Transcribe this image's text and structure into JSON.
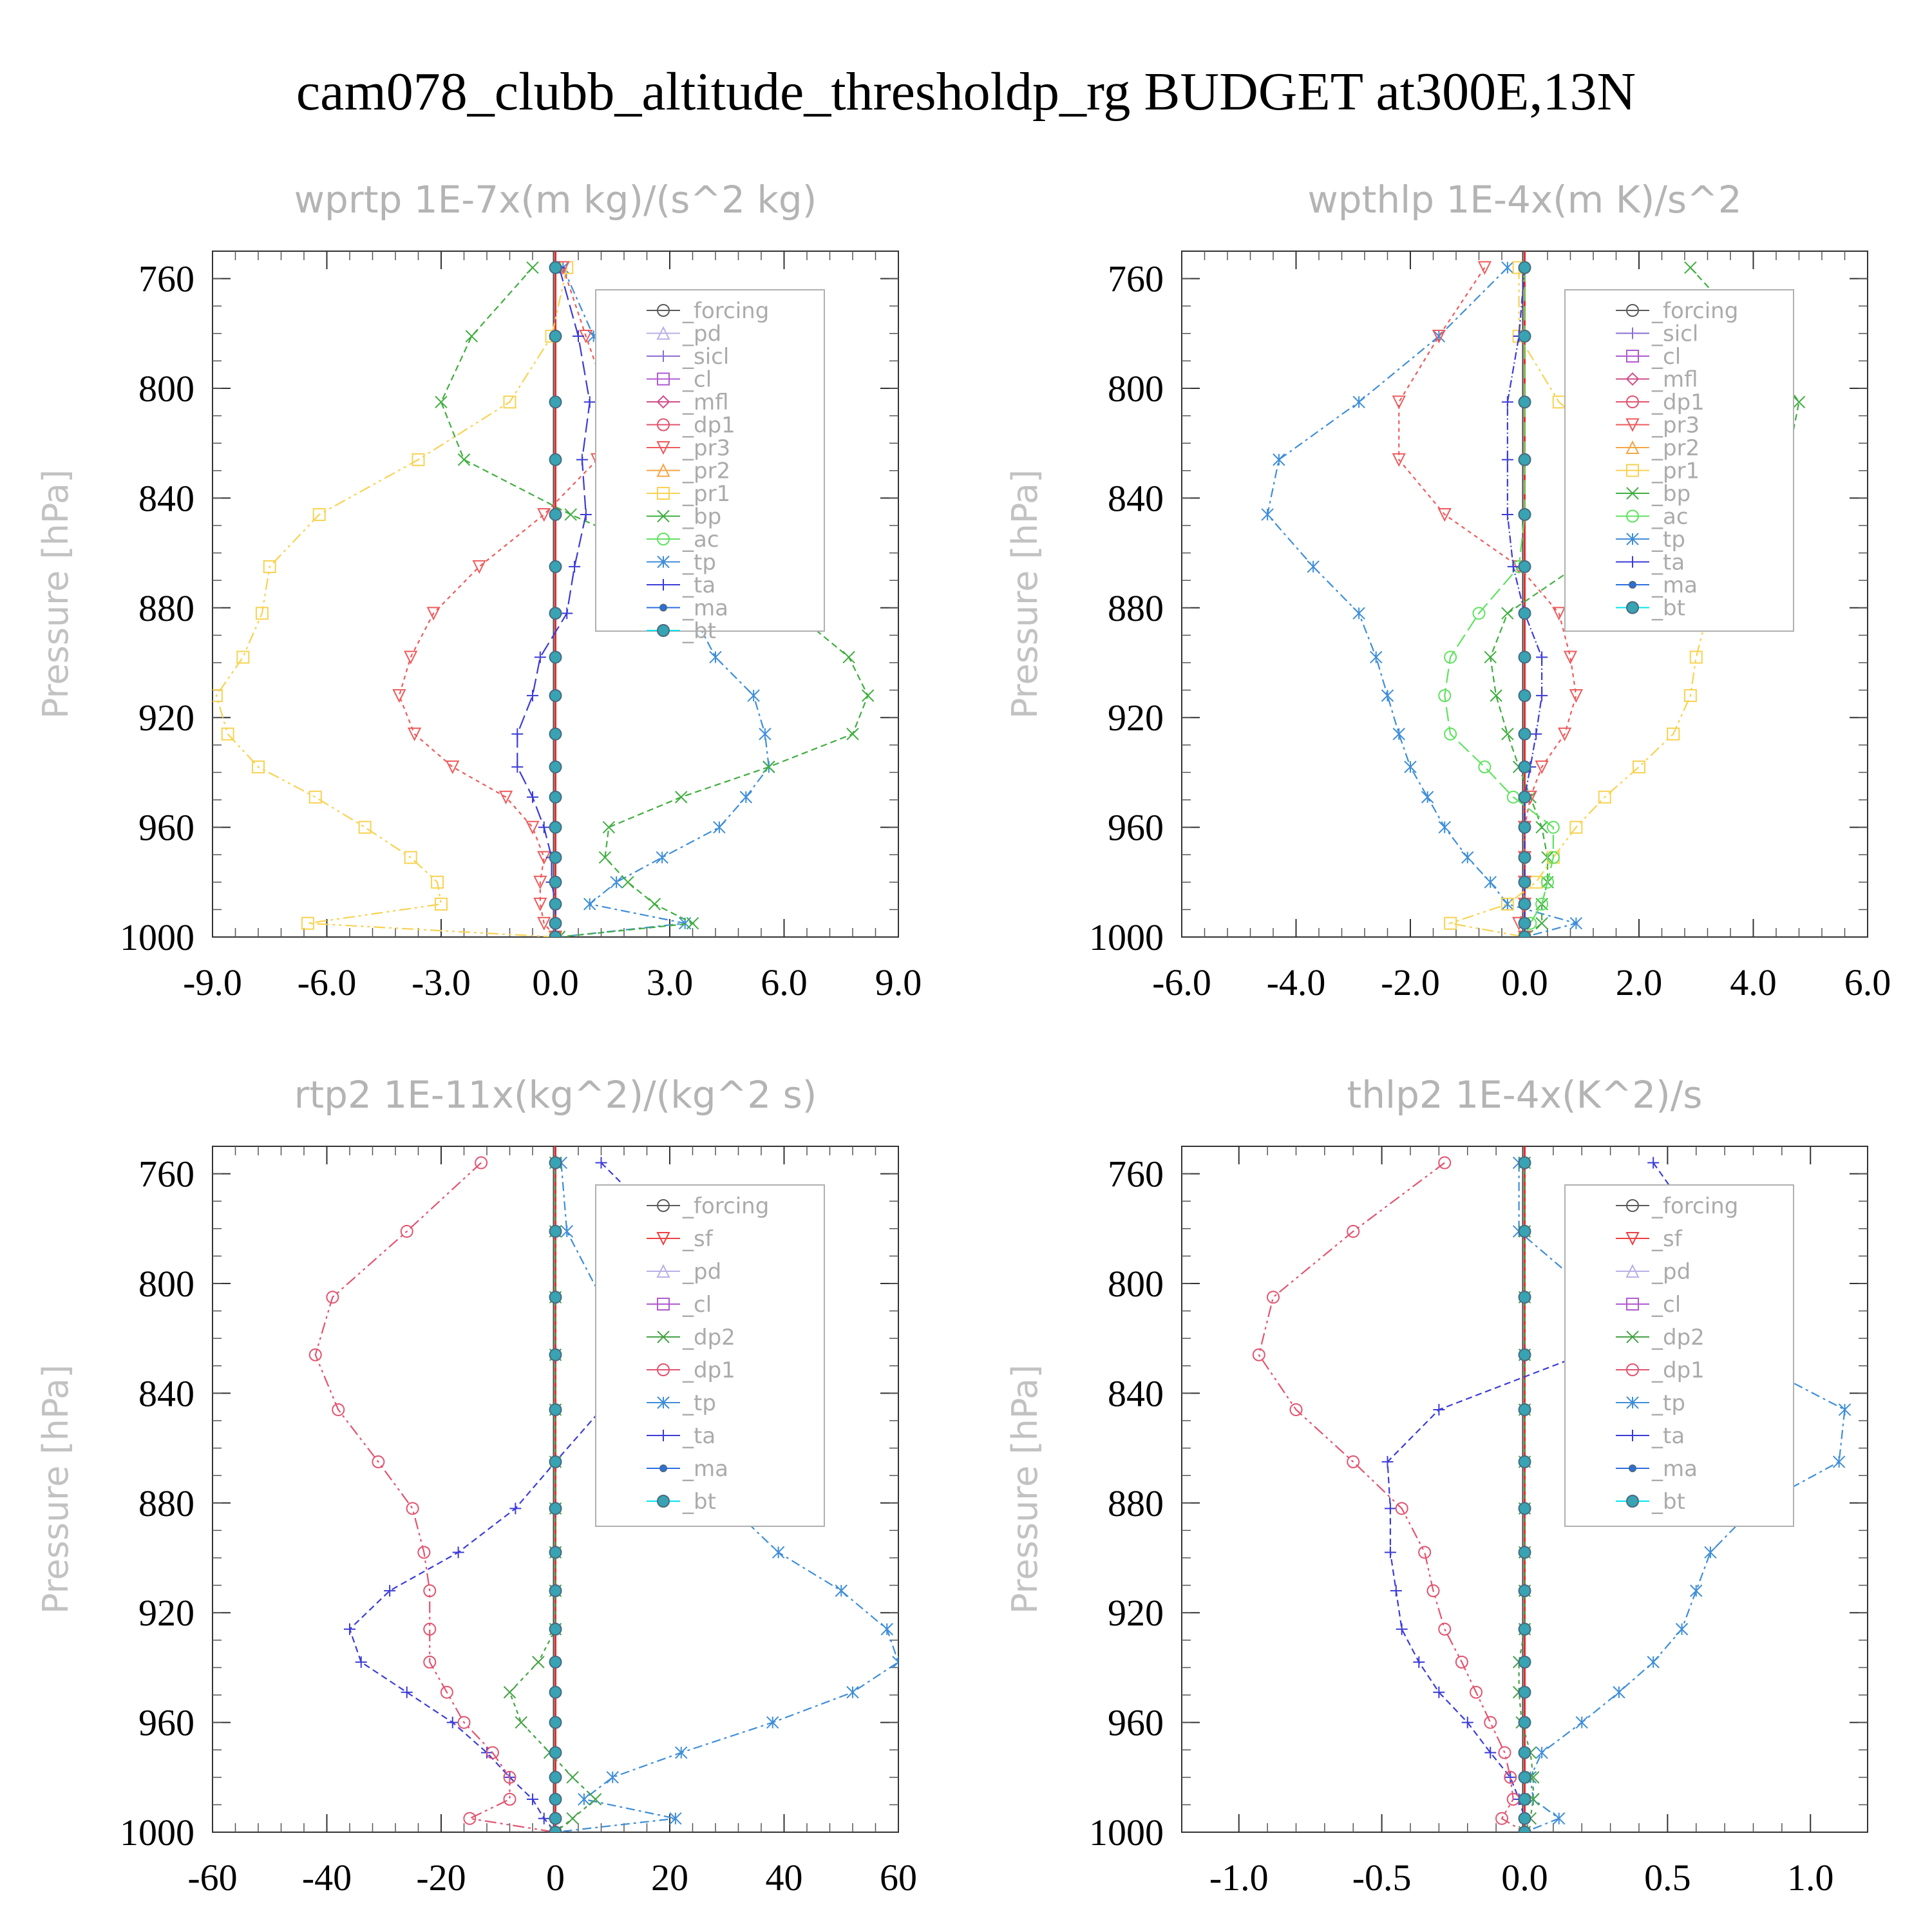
{
  "title": "cam078_clubb_altitude_thresholdp_rg  BUDGET at300E,13N",
  "colors": {
    "_forcing": "#5a5a5a",
    "_pd": "#b9b0e6",
    "_sicl": "#8a6fd0",
    "_cl": "#b05ad0",
    "_mfl": "#d04d8a",
    "_dp1": "#e2536f",
    "_pr3": "#ee5a5a",
    "_pr2": "#f4a545",
    "_pr1": "#f8d250",
    "_bp": "#3fae3f",
    "_ac": "#5fe25f",
    "_tp": "#3e8ed8",
    "_ta": "#3b3bd8",
    "_ma": "#2a6ee0",
    "_bt": "#00e5ee",
    "_sf": "#ee4040",
    "_dp2": "#46a246"
  },
  "chart_data": [
    {
      "type": "line",
      "title": "wprtp  1E-7x(m kg)/(s^2 kg)",
      "ylabel": "Pressure [hPa]",
      "xlim": [
        -9,
        9
      ],
      "ylim": [
        1000,
        750
      ],
      "xticks": [
        "-9.0",
        "-6.0",
        "-3.0",
        "0.0",
        "3.0",
        "6.0",
        "9.0"
      ],
      "yticks": [
        "760",
        "800",
        "840",
        "880",
        "920",
        "960",
        "1000"
      ],
      "y": [
        756,
        781,
        805,
        826,
        846,
        865,
        882,
        898,
        912,
        926,
        938,
        949,
        960,
        971,
        980,
        988,
        995,
        1000
      ],
      "legend": [
        "_forcing",
        "_pd",
        "_sicl",
        "_cl",
        "_mfl",
        "_dp1",
        "_pr3",
        "_pr2",
        "_pr1",
        "_bp",
        "_ac",
        "_tp",
        "_ta",
        "_ma",
        "_bt"
      ],
      "series": [
        {
          "name": "_tp",
          "values": [
            0.2,
            1.0,
            2.3,
            3.6,
            5.2,
            4.4,
            3.6,
            4.2,
            5.2,
            5.5,
            5.6,
            5.0,
            4.3,
            2.8,
            1.6,
            0.9,
            3.4,
            0.1
          ]
        },
        {
          "name": "_bp",
          "values": [
            -0.6,
            -2.2,
            -3.0,
            -2.4,
            0.4,
            3.5,
            6.3,
            7.7,
            8.2,
            7.8,
            5.6,
            3.3,
            1.4,
            1.3,
            1.9,
            2.6,
            3.6,
            0.1
          ]
        },
        {
          "name": "_pr1",
          "values": [
            0.3,
            -0.1,
            -1.2,
            -3.6,
            -6.2,
            -7.5,
            -7.7,
            -8.2,
            -8.9,
            -8.6,
            -7.8,
            -6.3,
            -5.0,
            -3.8,
            -3.1,
            -3.0,
            -6.5,
            0.0
          ]
        },
        {
          "name": "_pr3",
          "values": [
            0.2,
            0.8,
            1.4,
            1.1,
            -0.3,
            -2.0,
            -3.2,
            -3.8,
            -4.1,
            -3.7,
            -2.7,
            -1.3,
            -0.6,
            -0.3,
            -0.4,
            -0.4,
            -0.3,
            0.0
          ]
        },
        {
          "name": "_ta",
          "values": [
            0.1,
            0.6,
            0.9,
            0.7,
            0.8,
            0.5,
            0.3,
            -0.4,
            -0.6,
            -1.0,
            -1.0,
            -0.6,
            -0.3,
            -0.1,
            -0.1,
            0.0,
            0.0,
            0.0
          ]
        },
        {
          "name": "_bt",
          "values": [
            0,
            0,
            0,
            0,
            0,
            0,
            0,
            0,
            0,
            0,
            0,
            0,
            0,
            0,
            0,
            0,
            0,
            0
          ]
        }
      ]
    },
    {
      "type": "line",
      "title": "wpthlp  1E-4x(m K)/s^2",
      "ylabel": "Pressure [hPa]",
      "xlim": [
        -6,
        6
      ],
      "ylim": [
        1000,
        750
      ],
      "xticks": [
        "-6.0",
        "-4.0",
        "-2.0",
        "0.0",
        "2.0",
        "4.0",
        "6.0"
      ],
      "yticks": [
        "760",
        "800",
        "840",
        "880",
        "920",
        "960",
        "1000"
      ],
      "y": [
        756,
        781,
        805,
        826,
        846,
        865,
        882,
        898,
        912,
        926,
        938,
        949,
        960,
        971,
        980,
        988,
        995,
        1000
      ],
      "legend": [
        "_forcing",
        "_sicl",
        "_cl",
        "_mfl",
        "_dp1",
        "_pr3",
        "_pr2",
        "_pr1",
        "_bp",
        "_ac",
        "_tp",
        "_ta",
        "_ma",
        "_bt"
      ],
      "series": [
        {
          "name": "_tp",
          "values": [
            -0.3,
            -1.5,
            -2.9,
            -4.3,
            -4.5,
            -3.7,
            -2.9,
            -2.6,
            -2.4,
            -2.2,
            -2.0,
            -1.7,
            -1.4,
            -1.0,
            -0.6,
            -0.3,
            0.9,
            0.0
          ]
        },
        {
          "name": "_bp",
          "values": [
            2.9,
            4.0,
            4.8,
            4.6,
            2.9,
            0.9,
            -0.3,
            -0.6,
            -0.5,
            -0.3,
            -0.1,
            0.1,
            0.3,
            0.4,
            0.4,
            0.3,
            0.3,
            0.0
          ]
        },
        {
          "name": "_pr1",
          "values": [
            -0.1,
            -0.1,
            0.6,
            1.8,
            2.8,
            3.3,
            3.2,
            3.0,
            2.9,
            2.6,
            2.0,
            1.4,
            0.9,
            0.5,
            0.2,
            -0.3,
            -1.3,
            0.0
          ]
        },
        {
          "name": "_pr3",
          "values": [
            -0.7,
            -1.5,
            -2.2,
            -2.2,
            -1.4,
            -0.1,
            0.6,
            0.8,
            0.9,
            0.7,
            0.3,
            0.1,
            0.0,
            0.0,
            0.0,
            0.0,
            -0.1,
            0.0
          ]
        },
        {
          "name": "_ac",
          "values": [
            0,
            0,
            0,
            0,
            0,
            -0.1,
            -0.8,
            -1.3,
            -1.4,
            -1.3,
            -0.7,
            -0.2,
            0.5,
            0.5,
            0.4,
            0.3,
            0.1,
            0.0
          ]
        },
        {
          "name": "_ta",
          "values": [
            0,
            -0.1,
            -0.3,
            -0.3,
            -0.3,
            -0.2,
            0.0,
            0.3,
            0.3,
            0.2,
            0.1,
            0.0,
            0.0,
            0.0,
            0.0,
            0.0,
            0.0,
            0.0
          ]
        },
        {
          "name": "_bt",
          "values": [
            0,
            0,
            0,
            0,
            0,
            0,
            0,
            0,
            0,
            0,
            0,
            0,
            0,
            0,
            0,
            0,
            0,
            0
          ]
        }
      ]
    },
    {
      "type": "line",
      "title": "rtp2  1E-11x(kg^2)/(kg^2 s)",
      "ylabel": "Pressure [hPa]",
      "xlim": [
        -60,
        60
      ],
      "ylim": [
        1000,
        750
      ],
      "xticks": [
        "-60",
        "-40",
        "-20",
        "0",
        "20",
        "40",
        "60"
      ],
      "yticks": [
        "760",
        "800",
        "840",
        "880",
        "920",
        "960",
        "1000"
      ],
      "y": [
        756,
        781,
        805,
        826,
        846,
        865,
        882,
        898,
        912,
        926,
        938,
        949,
        960,
        971,
        980,
        988,
        995,
        1000
      ],
      "legend": [
        "_forcing",
        "_sf",
        "_pd",
        "_cl",
        "_dp2",
        "_dp1",
        "_tp",
        "_ta",
        "_ma",
        "_bt"
      ],
      "series": [
        {
          "name": "_tp",
          "values": [
            1.0,
            2.0,
            8.0,
            19.0,
            28.0,
            30.0,
            31.0,
            39.0,
            50.0,
            58.0,
            60.0,
            52.0,
            38.0,
            22.0,
            10.0,
            5.0,
            21.0,
            0.0
          ]
        },
        {
          "name": "_ta",
          "values": [
            8.0,
            20.0,
            30.0,
            23.0,
            8.0,
            0.0,
            -7.0,
            -17.0,
            -29.0,
            -36.0,
            -34.0,
            -26.0,
            -18.0,
            -12.0,
            -8.0,
            -4.0,
            -2.0,
            0.0
          ]
        },
        {
          "name": "_dp1",
          "values": [
            -13.0,
            -26.0,
            -39.0,
            -42.0,
            -38.0,
            -31.0,
            -25.0,
            -23.0,
            -22.0,
            -22.0,
            -22.0,
            -19.0,
            -16.0,
            -11.0,
            -8.0,
            -8.0,
            -15.0,
            0.0
          ]
        },
        {
          "name": "_dp2",
          "values": [
            0,
            0,
            0,
            0,
            0,
            0,
            0,
            0,
            0,
            0,
            -3.0,
            -8.0,
            -6.0,
            -1.0,
            3.0,
            7.0,
            3.0,
            0.0
          ]
        },
        {
          "name": "_bt",
          "values": [
            0,
            0,
            0,
            0,
            0,
            0,
            0,
            0,
            0,
            0,
            0,
            0,
            0,
            0,
            0,
            0,
            0,
            0
          ]
        }
      ]
    },
    {
      "type": "line",
      "title": "thlp2  1E-4x(K^2)/s",
      "ylabel": "Pressure [hPa]",
      "xlim": [
        -1.2,
        1.2
      ],
      "ylim": [
        1000,
        750
      ],
      "xticks": [
        "-1.0",
        "-0.5",
        "0.0",
        "0.5",
        "1.0"
      ],
      "xtick_values": [
        -1.0,
        -0.5,
        0.0,
        0.5,
        1.0
      ],
      "yticks": [
        "760",
        "800",
        "840",
        "880",
        "920",
        "960",
        "1000"
      ],
      "y": [
        756,
        781,
        805,
        826,
        846,
        865,
        882,
        898,
        912,
        926,
        938,
        949,
        960,
        971,
        980,
        988,
        995,
        1000
      ],
      "legend": [
        "_forcing",
        "_sf",
        "_pd",
        "_cl",
        "_dp2",
        "_dp1",
        "_tp",
        "_ta",
        "_ma",
        "_bt"
      ],
      "series": [
        {
          "name": "_tp",
          "values": [
            -0.02,
            -0.02,
            0.25,
            0.75,
            1.12,
            1.1,
            0.8,
            0.65,
            0.6,
            0.55,
            0.45,
            0.33,
            0.2,
            0.06,
            0.02,
            0.03,
            0.12,
            0.0
          ]
        },
        {
          "name": "_ta",
          "values": [
            0.45,
            0.62,
            0.66,
            0.2,
            -0.3,
            -0.48,
            -0.47,
            -0.47,
            -0.45,
            -0.43,
            -0.37,
            -0.3,
            -0.2,
            -0.12,
            -0.05,
            -0.02,
            0.0,
            0.0
          ]
        },
        {
          "name": "_dp1",
          "values": [
            -0.28,
            -0.6,
            -0.88,
            -0.93,
            -0.8,
            -0.6,
            -0.43,
            -0.35,
            -0.32,
            -0.28,
            -0.22,
            -0.17,
            -0.12,
            -0.07,
            -0.05,
            -0.04,
            -0.08,
            0.0
          ]
        },
        {
          "name": "_dp2",
          "values": [
            0,
            0,
            0,
            0,
            0,
            0,
            0,
            0,
            0,
            0,
            -0.02,
            -0.02,
            -0.01,
            0.02,
            0.03,
            0.03,
            0.02,
            0.0
          ]
        },
        {
          "name": "_bt",
          "values": [
            0,
            0,
            0,
            0,
            0,
            0,
            0,
            0,
            0,
            0,
            0,
            0,
            0,
            0,
            0,
            0,
            0,
            0
          ]
        }
      ]
    }
  ]
}
